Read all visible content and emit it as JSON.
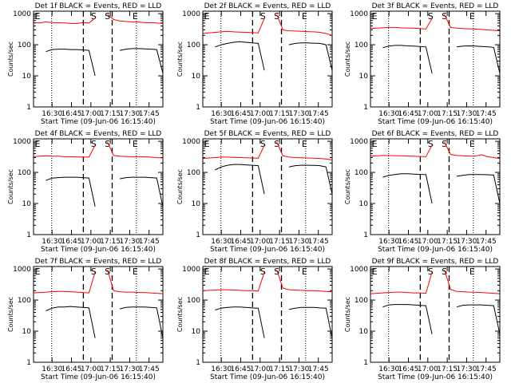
{
  "colors": {
    "events": "#000000",
    "lld": "#ff0000",
    "axes": "#000000",
    "background": "#ffffff"
  },
  "common": {
    "ylabel": "Counts/sec",
    "xlabel": "Start Time (09-Jun-06 16:15:40)",
    "x_ticks": [
      "16:30",
      "16:45",
      "17:00",
      "17:15",
      "17:30",
      "17:45"
    ],
    "y_ticks": [
      "1",
      "10",
      "100",
      "1000"
    ],
    "markers": {
      "start": "S",
      "end": "E"
    }
  },
  "chart_data": [
    {
      "type": "line",
      "title": "Det 1f BLACK = Events, RED = LLD",
      "ylim": [
        1,
        1200
      ],
      "yscale": "log",
      "grid": false,
      "series": [
        {
          "name": "Events",
          "color": "#000000",
          "values": [
            null,
            null,
            60,
            70,
            72,
            72,
            70,
            70,
            68,
            66,
            10,
            null,
            null,
            null,
            65,
            72,
            75,
            75,
            74,
            72,
            70,
            12
          ]
        },
        {
          "name": "LLD",
          "color": "#ff0000",
          "values": [
            520,
            500,
            540,
            520,
            510,
            500,
            490,
            480,
            520,
            500,
            720,
            null,
            950,
            650,
            580,
            560,
            540,
            530,
            520,
            510,
            500,
            480
          ]
        }
      ]
    },
    {
      "type": "line",
      "title": "Det 2f BLACK = Events, RED = LLD",
      "ylim": [
        1,
        1200
      ],
      "yscale": "log",
      "grid": false,
      "series": [
        {
          "name": "Events",
          "color": "#000000",
          "values": [
            null,
            null,
            85,
            100,
            110,
            120,
            125,
            120,
            115,
            110,
            15,
            null,
            null,
            null,
            100,
            110,
            115,
            115,
            112,
            110,
            100,
            15
          ]
        },
        {
          "name": "LLD",
          "color": "#ff0000",
          "values": [
            230,
            240,
            250,
            260,
            270,
            260,
            255,
            250,
            245,
            240,
            700,
            null,
            950,
            300,
            280,
            275,
            270,
            265,
            260,
            250,
            230,
            200
          ]
        }
      ]
    },
    {
      "type": "line",
      "title": "Det 3f BLACK = Events, RED = LLD",
      "ylim": [
        1,
        1200
      ],
      "yscale": "log",
      "grid": false,
      "series": [
        {
          "name": "Events",
          "color": "#000000",
          "values": [
            null,
            null,
            80,
            90,
            95,
            95,
            92,
            90,
            88,
            85,
            12,
            null,
            null,
            null,
            85,
            90,
            92,
            90,
            88,
            86,
            82,
            12
          ]
        },
        {
          "name": "LLD",
          "color": "#ff0000",
          "values": [
            330,
            340,
            350,
            360,
            360,
            350,
            345,
            340,
            330,
            320,
            700,
            null,
            950,
            360,
            340,
            330,
            325,
            320,
            310,
            300,
            290,
            280
          ]
        }
      ]
    },
    {
      "type": "line",
      "title": "Det 4f BLACK = Events, RED = LLD",
      "ylim": [
        1,
        1200
      ],
      "yscale": "log",
      "grid": false,
      "series": [
        {
          "name": "Events",
          "color": "#000000",
          "values": [
            null,
            null,
            55,
            65,
            68,
            70,
            70,
            70,
            68,
            66,
            8,
            null,
            null,
            null,
            62,
            68,
            70,
            70,
            70,
            68,
            66,
            8
          ]
        },
        {
          "name": "LLD",
          "color": "#ff0000",
          "values": [
            320,
            330,
            340,
            330,
            330,
            320,
            320,
            315,
            310,
            310,
            750,
            null,
            950,
            350,
            330,
            325,
            320,
            320,
            315,
            310,
            300,
            290
          ]
        }
      ]
    },
    {
      "type": "line",
      "title": "Det 5f BLACK = Events, RED = LLD",
      "ylim": [
        1,
        1200
      ],
      "yscale": "log",
      "grid": false,
      "series": [
        {
          "name": "Events",
          "color": "#000000",
          "values": [
            null,
            null,
            120,
            150,
            170,
            180,
            180,
            175,
            170,
            165,
            20,
            null,
            null,
            null,
            150,
            165,
            170,
            170,
            168,
            165,
            150,
            20
          ]
        },
        {
          "name": "LLD",
          "color": "#ff0000",
          "values": [
            280,
            290,
            300,
            310,
            310,
            305,
            300,
            295,
            290,
            285,
            750,
            null,
            950,
            340,
            310,
            300,
            295,
            290,
            285,
            280,
            270,
            250
          ]
        }
      ]
    },
    {
      "type": "line",
      "title": "Det 6f BLACK = Events, RED = LLD",
      "ylim": [
        1,
        1200
      ],
      "yscale": "log",
      "grid": false,
      "series": [
        {
          "name": "Events",
          "color": "#000000",
          "values": [
            null,
            null,
            70,
            80,
            85,
            90,
            90,
            88,
            86,
            85,
            10,
            null,
            null,
            null,
            75,
            80,
            85,
            85,
            85,
            84,
            82,
            10
          ]
        },
        {
          "name": "LLD",
          "color": "#ff0000",
          "values": [
            330,
            340,
            350,
            350,
            345,
            340,
            335,
            330,
            325,
            320,
            750,
            null,
            950,
            380,
            350,
            340,
            335,
            330,
            370,
            320,
            300,
            280
          ]
        }
      ]
    },
    {
      "type": "line",
      "title": "Det 7f BLACK = Events, RED = LLD",
      "ylim": [
        1,
        1200
      ],
      "yscale": "log",
      "grid": false,
      "series": [
        {
          "name": "Events",
          "color": "#000000",
          "values": [
            null,
            null,
            45,
            55,
            60,
            60,
            62,
            60,
            58,
            56,
            6,
            null,
            null,
            null,
            52,
            58,
            60,
            60,
            60,
            58,
            56,
            6
          ]
        },
        {
          "name": "LLD",
          "color": "#ff0000",
          "values": [
            170,
            175,
            180,
            185,
            190,
            190,
            185,
            180,
            175,
            170,
            800,
            null,
            950,
            200,
            185,
            180,
            180,
            175,
            175,
            170,
            165,
            160
          ]
        }
      ]
    },
    {
      "type": "line",
      "title": "Det 8f BLACK = Events, RED = LLD",
      "ylim": [
        1,
        1200
      ],
      "yscale": "log",
      "grid": false,
      "series": [
        {
          "name": "Events",
          "color": "#000000",
          "values": [
            null,
            null,
            48,
            55,
            58,
            60,
            60,
            58,
            56,
            55,
            6,
            null,
            null,
            null,
            50,
            55,
            58,
            58,
            58,
            56,
            55,
            6
          ]
        },
        {
          "name": "LLD",
          "color": "#ff0000",
          "values": [
            200,
            205,
            210,
            215,
            215,
            210,
            205,
            200,
            200,
            195,
            800,
            null,
            950,
            240,
            215,
            210,
            205,
            200,
            200,
            195,
            190,
            185
          ]
        }
      ]
    },
    {
      "type": "line",
      "title": "Det 9f BLACK = Events, RED = LLD",
      "ylim": [
        1,
        1200
      ],
      "yscale": "log",
      "grid": false,
      "series": [
        {
          "name": "Events",
          "color": "#000000",
          "values": [
            null,
            null,
            60,
            70,
            72,
            72,
            72,
            70,
            68,
            66,
            8,
            null,
            null,
            null,
            60,
            68,
            70,
            70,
            70,
            68,
            66,
            8
          ]
        },
        {
          "name": "LLD",
          "color": "#ff0000",
          "values": [
            160,
            165,
            170,
            175,
            180,
            180,
            175,
            170,
            170,
            165,
            800,
            null,
            950,
            220,
            190,
            185,
            180,
            178,
            175,
            170,
            165,
            160
          ]
        }
      ]
    }
  ]
}
